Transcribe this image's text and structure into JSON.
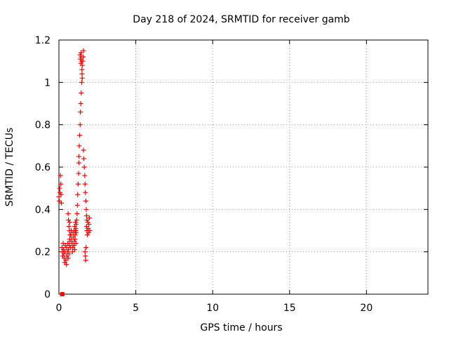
{
  "chart_data": {
    "type": "scatter",
    "title": "Day 218 of 2024, SRMTID for receiver gamb",
    "xlabel": "GPS time / hours",
    "ylabel": "SRMTID / TECUs",
    "xlim": [
      0,
      24
    ],
    "ylim": [
      0,
      1.2
    ],
    "xticks": [
      0,
      5,
      10,
      15,
      20
    ],
    "xtick_labels": [
      "0",
      "5",
      "10",
      "15",
      "20"
    ],
    "yticks": [
      0,
      0.2,
      0.4,
      0.6,
      0.8,
      1.0,
      1.2
    ],
    "ytick_labels": [
      "0",
      "0.2",
      "0.4",
      "0.6",
      "0.8",
      "1",
      "1.2"
    ],
    "grid": true,
    "marker": "+",
    "series_color": "#ff0000",
    "series": [
      {
        "name": "SRMTID",
        "x": [
          0.0,
          0.03,
          0.05,
          0.07,
          0.1,
          0.12,
          0.14,
          0.16,
          0.2,
          0.22,
          0.25,
          0.28,
          0.3,
          0.32,
          0.35,
          0.38,
          0.4,
          0.42,
          0.45,
          0.48,
          0.5,
          0.52,
          0.55,
          0.58,
          0.6,
          0.62,
          0.65,
          0.68,
          0.7,
          0.6,
          0.62,
          0.65,
          0.68,
          0.7,
          0.72,
          0.72,
          0.75,
          0.78,
          0.8,
          0.82,
          0.85,
          0.88,
          0.9,
          0.92,
          0.95,
          0.98,
          1.0,
          1.02,
          1.05,
          1.08,
          1.1,
          1.0,
          1.02,
          1.05,
          1.08,
          1.1,
          1.12,
          1.1,
          1.12,
          1.15,
          1.18,
          1.2,
          1.22,
          1.25,
          1.28,
          1.3,
          1.3,
          1.32,
          1.35,
          1.38,
          1.4,
          1.42,
          1.45,
          1.48,
          1.5,
          1.52,
          1.55,
          1.58,
          1.6,
          1.38,
          1.4,
          1.42,
          1.44,
          1.46,
          1.48,
          1.5,
          1.52,
          1.6,
          1.62,
          1.65,
          1.68,
          1.7,
          1.72,
          1.75,
          1.78,
          1.8,
          1.82,
          1.8,
          1.82,
          1.85,
          1.88,
          1.9,
          1.92,
          1.95,
          1.98,
          2.0,
          1.7,
          1.72,
          1.74,
          1.76
        ],
        "y": [
          0.46,
          0.44,
          0.5,
          0.48,
          0.56,
          0.52,
          0.47,
          0.43,
          0.22,
          0.2,
          0.18,
          0.24,
          0.21,
          0.19,
          0.17,
          0.15,
          0.2,
          0.23,
          0.16,
          0.14,
          0.22,
          0.18,
          0.2,
          0.24,
          0.17,
          0.21,
          0.19,
          0.23,
          0.26,
          0.38,
          0.35,
          0.32,
          0.3,
          0.34,
          0.28,
          0.25,
          0.22,
          0.28,
          0.3,
          0.26,
          0.24,
          0.2,
          0.22,
          0.29,
          0.27,
          0.23,
          0.25,
          0.21,
          0.26,
          0.3,
          0.24,
          0.3,
          0.32,
          0.28,
          0.34,
          0.31,
          0.29,
          0.3,
          0.33,
          0.35,
          0.38,
          0.42,
          0.47,
          0.52,
          0.57,
          0.62,
          0.65,
          0.7,
          0.75,
          0.8,
          0.86,
          0.9,
          0.95,
          1.0,
          1.04,
          1.08,
          1.1,
          1.12,
          1.15,
          1.13,
          1.11,
          1.09,
          1.14,
          1.12,
          1.1,
          1.06,
          1.02,
          0.68,
          0.64,
          0.6,
          0.56,
          0.52,
          0.48,
          0.44,
          0.4,
          0.37,
          0.35,
          0.32,
          0.3,
          0.28,
          0.34,
          0.31,
          0.29,
          0.33,
          0.36,
          0.3,
          0.2,
          0.18,
          0.16,
          0.22
        ]
      }
    ],
    "extra_marks": [
      {
        "name": "zero-marker",
        "x": 0.22,
        "y": 0.0,
        "shape": "square"
      }
    ]
  }
}
